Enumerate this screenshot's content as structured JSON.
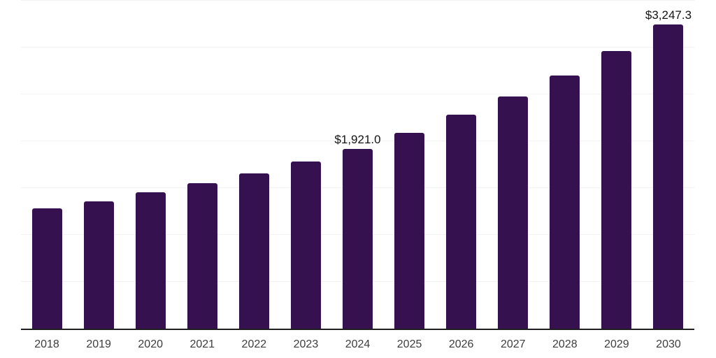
{
  "chart_data": {
    "type": "bar",
    "categories": [
      "2018",
      "2019",
      "2020",
      "2021",
      "2022",
      "2023",
      "2024",
      "2025",
      "2026",
      "2027",
      "2028",
      "2029",
      "2030"
    ],
    "values": [
      1280,
      1360,
      1455,
      1550,
      1660,
      1785,
      1921.0,
      2090,
      2285,
      2475,
      2705,
      2965,
      3247.3
    ],
    "annotations": [
      {
        "category": "2024",
        "text": "$1,921.0"
      },
      {
        "category": "2030",
        "text": "$3,247.3"
      }
    ],
    "title": "",
    "xlabel": "",
    "ylabel": "",
    "ylim": [
      0,
      3500
    ],
    "gridline_step": 500,
    "grid": true,
    "legend": false,
    "y_axis_labels_visible": false,
    "colors": {
      "bar": "#351150",
      "gridline": "#f2f2f2",
      "axis": "#1f1f1f",
      "value_label_text": "#141414",
      "tick_label_text": "#3d3d3d",
      "background": "#ffffff"
    }
  }
}
